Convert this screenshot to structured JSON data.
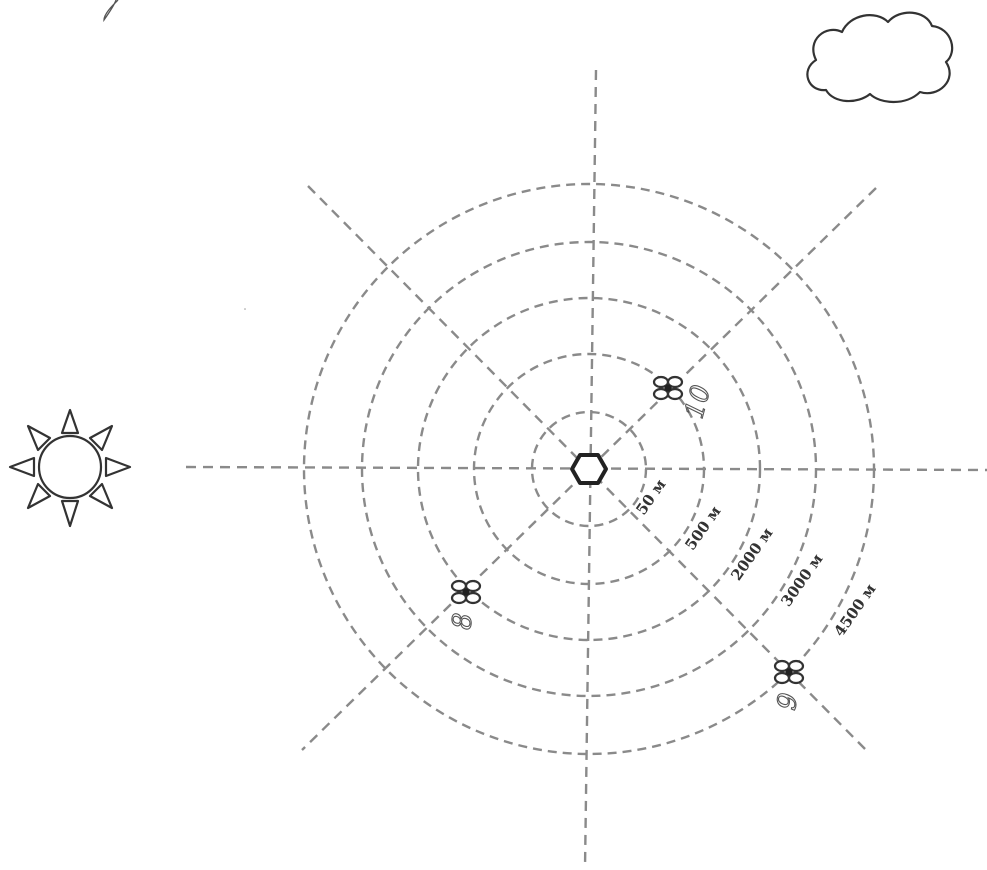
{
  "diagram": {
    "rings": [
      {
        "label": "50 м"
      },
      {
        "label": "500 м"
      },
      {
        "label": "2000 м"
      },
      {
        "label": "3000 м"
      },
      {
        "label": "4500 м"
      }
    ],
    "markers": [
      {
        "number": "10"
      },
      {
        "number": "8"
      },
      {
        "number": "9"
      }
    ]
  },
  "icons": {
    "center": "hexagon-icon",
    "sun": "sun-icon",
    "cloud": "cloud-icon",
    "flower": "flower-icon"
  }
}
